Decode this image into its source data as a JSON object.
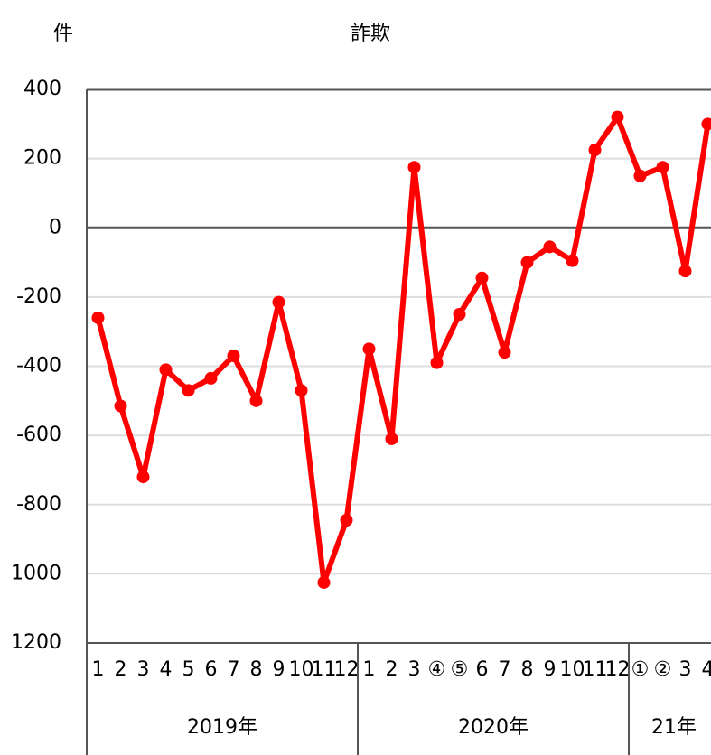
{
  "chart_data": {
    "type": "line",
    "title": "詐欺",
    "y_label": "件",
    "category_groups": [
      {
        "name": "2019年",
        "categories": [
          "1",
          "2",
          "3",
          "4",
          "5",
          "6",
          "7",
          "8",
          "9",
          "10",
          "11",
          "12"
        ]
      },
      {
        "name": "2020年",
        "categories": [
          "1",
          "2",
          "3",
          "④",
          "⑤",
          "6",
          "7",
          "8",
          "9",
          "10",
          "11",
          "12"
        ]
      },
      {
        "name": "21年",
        "categories": [
          "①",
          "②",
          "3",
          "4"
        ]
      }
    ],
    "series": [
      {
        "name": "詐欺",
        "color": "#ff0000",
        "values": [
          -260,
          -515,
          -720,
          -410,
          -470,
          -435,
          -370,
          -500,
          -215,
          -470,
          -1025,
          -845,
          -350,
          -610,
          175,
          -390,
          -250,
          -145,
          -360,
          -100,
          -55,
          -95,
          225,
          320,
          150,
          175,
          -125,
          300
        ]
      }
    ],
    "ylim": [
      -1200,
      400
    ],
    "yticks": [
      400,
      200,
      0,
      -200,
      -400,
      -600,
      -800,
      {
        "value": -1000,
        "label": "1000"
      },
      {
        "value": -1200,
        "label": "1200"
      }
    ],
    "grid": true
  }
}
